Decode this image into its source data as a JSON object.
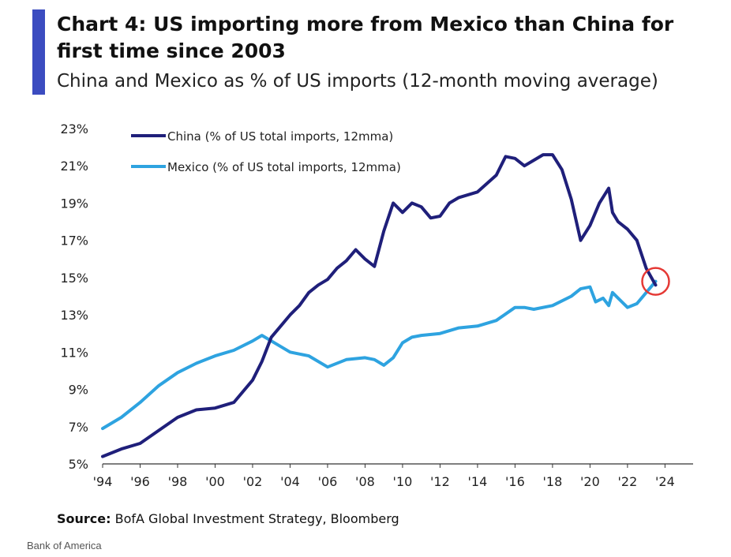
{
  "header": {
    "title": "Chart 4: US importing more from Mexico than China for first time since 2003",
    "subtitle": "China and Mexico as % of US imports (12-month moving average)"
  },
  "footer": {
    "source_label": "Source:",
    "source_text": "BofA Global Investment Strategy, Bloomberg",
    "credit": "Bank of America"
  },
  "colors": {
    "china": "#1f1f7a",
    "mexico": "#2ea3e0",
    "highlight_circle": "#e53935",
    "accent": "#3b4cc0"
  },
  "chart_data": {
    "type": "line",
    "title": "Chart 4: US importing more from Mexico than China for first time since 2003",
    "subtitle": "China and Mexico as % of US imports (12-month moving average)",
    "xlabel": "",
    "ylabel": "",
    "xlim": [
      1994,
      2025.5
    ],
    "ylim": [
      5,
      23
    ],
    "x_ticks": [
      1994,
      1996,
      1998,
      2000,
      2002,
      2004,
      2006,
      2008,
      2010,
      2012,
      2014,
      2016,
      2018,
      2020,
      2022,
      2024
    ],
    "x_tick_labels": [
      "'94",
      "'96",
      "'98",
      "'00",
      "'02",
      "'04",
      "'06",
      "'08",
      "'10",
      "'12",
      "'14",
      "'16",
      "'18",
      "'20",
      "'22",
      "'24"
    ],
    "y_ticks": [
      5,
      7,
      9,
      11,
      13,
      15,
      17,
      19,
      21,
      23
    ],
    "y_tick_labels": [
      "5%",
      "7%",
      "9%",
      "11%",
      "13%",
      "15%",
      "17%",
      "19%",
      "21%",
      "23%"
    ],
    "grid": false,
    "legend_position": "top-left",
    "annotation": {
      "type": "circle",
      "x": 2023.5,
      "y": 14.8
    },
    "series": [
      {
        "name": "China (% of US total imports, 12mma)",
        "x": [
          1994,
          1995,
          1996,
          1997,
          1998,
          1999,
          2000,
          2001,
          2002,
          2002.5,
          2003,
          2003.5,
          2004,
          2004.5,
          2005,
          2005.5,
          2006,
          2006.5,
          2007,
          2007.5,
          2008,
          2008.5,
          2009,
          2009.5,
          2010,
          2010.5,
          2011,
          2011.5,
          2012,
          2012.5,
          2013,
          2014,
          2015,
          2015.5,
          2016,
          2016.5,
          2017,
          2017.5,
          2018,
          2018.5,
          2019,
          2019.5,
          2020,
          2020.5,
          2021,
          2021.2,
          2021.5,
          2022,
          2022.5,
          2023,
          2023.5
        ],
        "y": [
          5.4,
          5.8,
          6.1,
          6.8,
          7.5,
          7.9,
          8.0,
          8.3,
          9.5,
          10.5,
          11.8,
          12.4,
          13.0,
          13.5,
          14.2,
          14.6,
          14.9,
          15.5,
          15.9,
          16.5,
          16.0,
          15.6,
          17.5,
          19.0,
          18.5,
          19.0,
          18.8,
          18.2,
          18.3,
          19.0,
          19.3,
          19.6,
          20.5,
          21.5,
          21.4,
          21.0,
          21.3,
          21.6,
          21.6,
          20.8,
          19.2,
          17.0,
          17.8,
          19.0,
          19.8,
          18.5,
          18.0,
          17.6,
          17.0,
          15.5,
          14.6
        ]
      },
      {
        "name": "Mexico (% of US total imports, 12mma)",
        "x": [
          1994,
          1995,
          1996,
          1997,
          1998,
          1999,
          2000,
          2001,
          2002,
          2002.5,
          2003,
          2004,
          2005,
          2006,
          2007,
          2008,
          2008.5,
          2009,
          2009.5,
          2010,
          2010.5,
          2011,
          2012,
          2013,
          2014,
          2015,
          2016,
          2016.5,
          2017,
          2018,
          2019,
          2019.5,
          2020,
          2020.3,
          2020.7,
          2021,
          2021.2,
          2021.5,
          2022,
          2022.5,
          2023,
          2023.5
        ],
        "y": [
          6.9,
          7.5,
          8.3,
          9.2,
          9.9,
          10.4,
          10.8,
          11.1,
          11.6,
          11.9,
          11.6,
          11.0,
          10.8,
          10.2,
          10.6,
          10.7,
          10.6,
          10.3,
          10.7,
          11.5,
          11.8,
          11.9,
          12.0,
          12.3,
          12.4,
          12.7,
          13.4,
          13.4,
          13.3,
          13.5,
          14.0,
          14.4,
          14.5,
          13.7,
          13.9,
          13.5,
          14.2,
          13.9,
          13.4,
          13.6,
          14.2,
          14.8
        ]
      }
    ]
  }
}
